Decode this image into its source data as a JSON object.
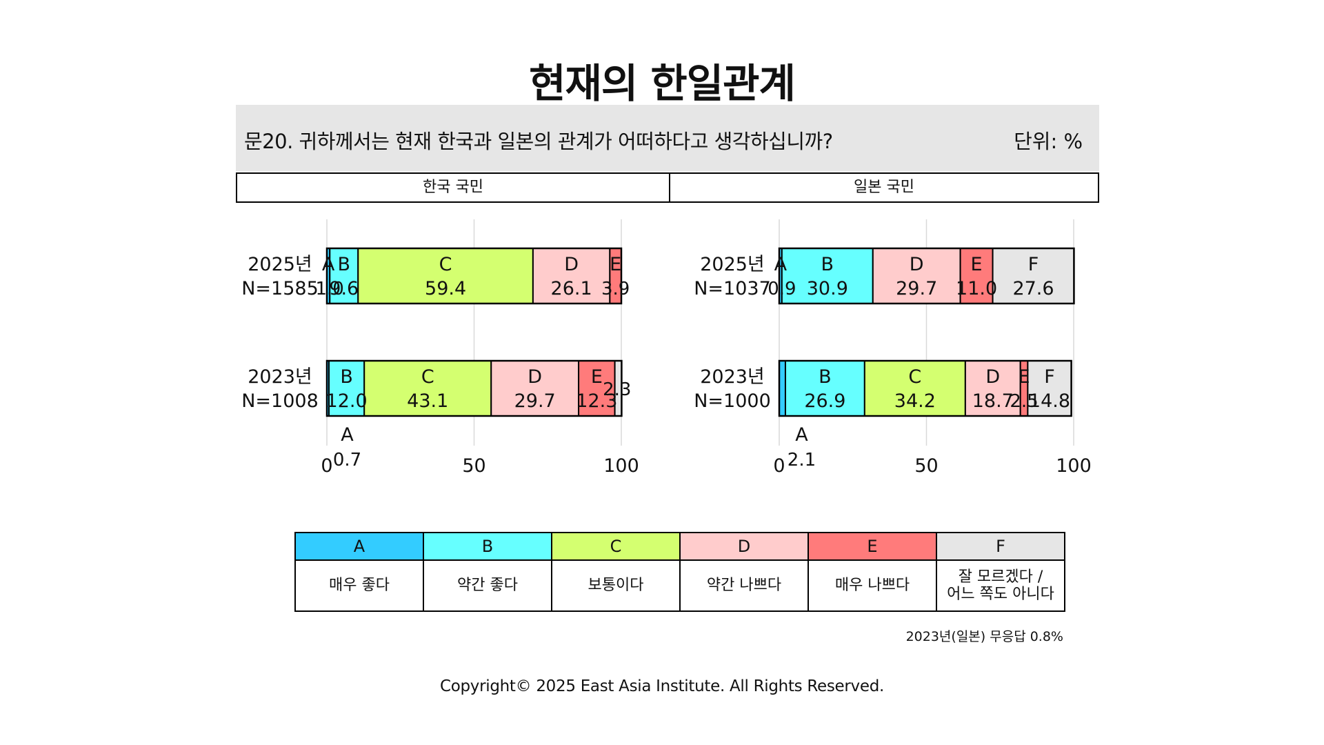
{
  "title": "현재의 한일관계",
  "question": "문20. 귀하께서는 현재 한국과 일본의 관계가 어떠하다고 생각하십니까?",
  "unit": "단위: %",
  "colors": {
    "A": "#33ccff",
    "B": "#66ffff",
    "C": "#d4ff70",
    "D": "#ffcccc",
    "E": "#ff7b7b",
    "F": "#e6e6e6"
  },
  "chart_data": [
    {
      "type": "bar",
      "stacked": true,
      "orientation": "horizontal",
      "panel": "한국 국민",
      "categories": [
        "A",
        "B",
        "C",
        "D",
        "E",
        "F"
      ],
      "rows": [
        {
          "year": "2025년",
          "n": "N=1585",
          "values": [
            1.0,
            9.6,
            59.4,
            26.1,
            3.9,
            0
          ]
        },
        {
          "year": "2023년",
          "n": "N=1008",
          "values": [
            0.7,
            12.0,
            43.1,
            29.7,
            12.3,
            2.3
          ]
        }
      ],
      "xlim": [
        0,
        100
      ],
      "xticks": [
        "0",
        "50",
        "100"
      ],
      "grid": true
    },
    {
      "type": "bar",
      "stacked": true,
      "orientation": "horizontal",
      "panel": "일본 국민",
      "categories": [
        "A",
        "B",
        "C",
        "D",
        "E",
        "F"
      ],
      "rows": [
        {
          "year": "2025년",
          "n": "N=1037",
          "values": [
            0.9,
            30.9,
            0,
            29.7,
            11.0,
            27.6
          ]
        },
        {
          "year": "2023년",
          "n": "N=1000",
          "values": [
            2.1,
            26.9,
            34.2,
            18.7,
            2.5,
            14.8
          ]
        }
      ],
      "xlim": [
        0,
        100
      ],
      "xticks": [
        "0",
        "50",
        "100"
      ],
      "grid": true
    }
  ],
  "legend": [
    {
      "code": "A",
      "label": "매우 좋다"
    },
    {
      "code": "B",
      "label": "약간 좋다"
    },
    {
      "code": "C",
      "label": "보통이다"
    },
    {
      "code": "D",
      "label": "약간 나쁘다"
    },
    {
      "code": "E",
      "label": "매우 나쁘다"
    },
    {
      "code": "F",
      "label": "잘 모르겠다 /\n어느 쪽도 아니다"
    }
  ],
  "note": "2023년(일본) 무응답 0.8%",
  "copyright": "Copyright© 2025 East Asia Institute. All Rights Reserved."
}
